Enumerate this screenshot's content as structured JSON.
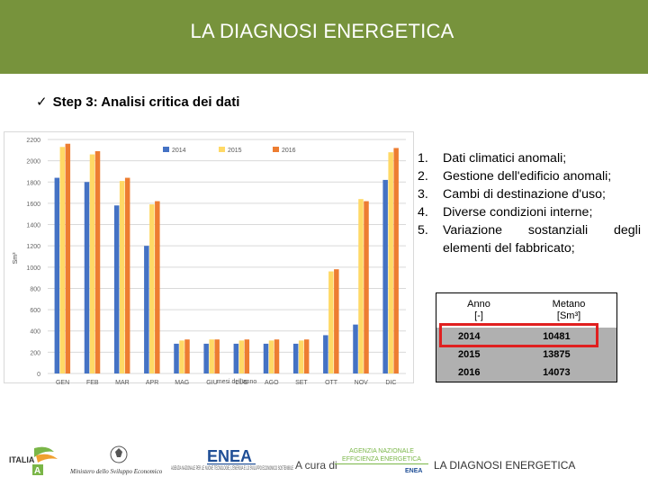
{
  "header": {
    "title": "LA DIAGNOSI ENERGETICA",
    "bg_color": "#77933c"
  },
  "step": {
    "check_icon": "✓",
    "label": "Step 3: Analisi critica dei dati"
  },
  "chart_data": {
    "type": "bar",
    "title": "",
    "xlabel": "mesi dell'anno",
    "ylabel": "Sm³",
    "ylim": [
      0,
      2200
    ],
    "yticks": [
      "0",
      "200",
      "400",
      "600",
      "800",
      "1000",
      "1200",
      "1400",
      "1600",
      "1800",
      "2000",
      "2200"
    ],
    "categories": [
      "GEN",
      "FEB",
      "MAR",
      "APR",
      "MAG",
      "GIU",
      "LUG",
      "AGO",
      "SET",
      "OTT",
      "NOV",
      "DIC"
    ],
    "series": [
      {
        "name": "2014",
        "color": "#4472c4",
        "values": [
          1840,
          1800,
          1580,
          1200,
          280,
          280,
          280,
          280,
          280,
          360,
          460,
          1820
        ]
      },
      {
        "name": "2015",
        "color": "#ffd966",
        "values": [
          2130,
          2060,
          1810,
          1590,
          310,
          320,
          310,
          310,
          310,
          960,
          1640,
          2080
        ]
      },
      {
        "name": "2016",
        "color": "#ed7d31",
        "values": [
          2160,
          2090,
          1840,
          1620,
          320,
          320,
          320,
          320,
          320,
          980,
          1620,
          2120
        ]
      }
    ]
  },
  "list": {
    "items": [
      {
        "num": "1.",
        "text": "Dati climatici anomali;"
      },
      {
        "num": "2.",
        "text": "Gestione dell'edificio anomali;"
      },
      {
        "num": "3.",
        "text": "Cambi di destinazione d'uso;"
      },
      {
        "num": "4.",
        "text": "Diverse condizioni interne;"
      },
      {
        "num": "5.",
        "text": "Variazione sostanziali degli"
      }
    ],
    "continuation": "elementi del fabbricato;"
  },
  "table": {
    "header": {
      "col1_line1": "Anno",
      "col1_line2": "[-]",
      "col2_line1": "Metano",
      "col2_line2": "[Sm³]"
    },
    "rows": [
      {
        "anno": "2014",
        "metano": "10481"
      },
      {
        "anno": "2015",
        "metano": "13875"
      },
      {
        "anno": "2016",
        "metano": "14073"
      }
    ],
    "highlight_color": "#e02020"
  },
  "footer": {
    "italia_logo_text": "ITALIA",
    "ministero_text": "Ministero dello Sviluppo Economico",
    "enea_text": "ENEA",
    "enea_sub": "AGENZIA NAZIONALE PER LE NUOVE TECNOLOGIE, L'ENERGIA E LO SVILUPPO ECONOMICO SOSTENIBILE",
    "a_cura_di": "A cura di",
    "agenzia_line1": "AGENZIA NAZIONALE",
    "agenzia_line2": "EFFICIENZA ENERGETICA",
    "right_text": "LA DIAGNOSI ENERGETICA"
  }
}
